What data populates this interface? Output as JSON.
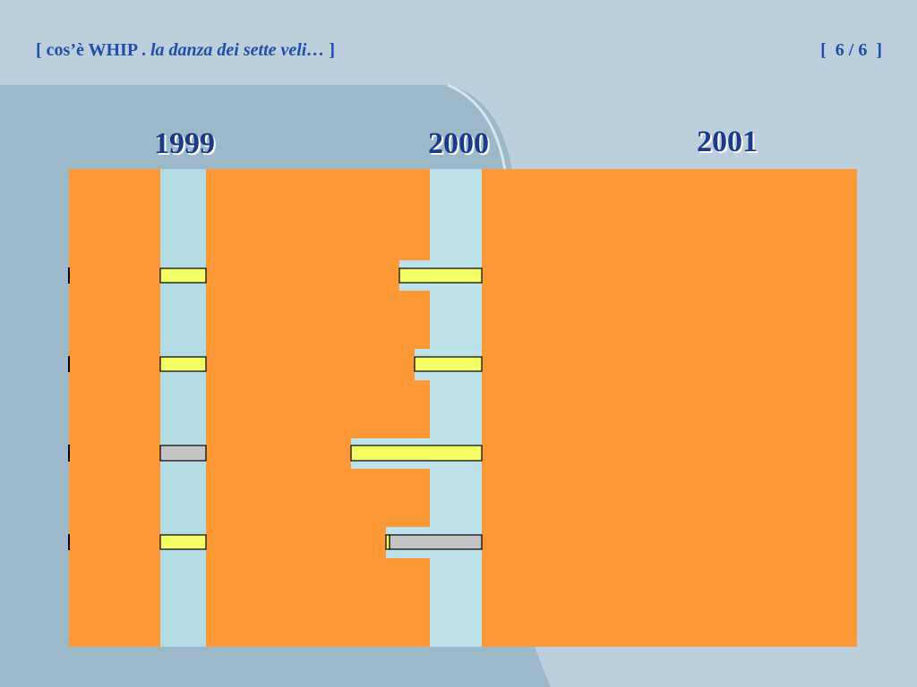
{
  "header": {
    "title_open": "[ cos’è WHIP . ",
    "title_italic": "la danza dei sette veli…",
    "title_close": " ]",
    "page": "[  6 / 6  ]"
  },
  "years": [
    "1999",
    "2000",
    "2001"
  ]
}
